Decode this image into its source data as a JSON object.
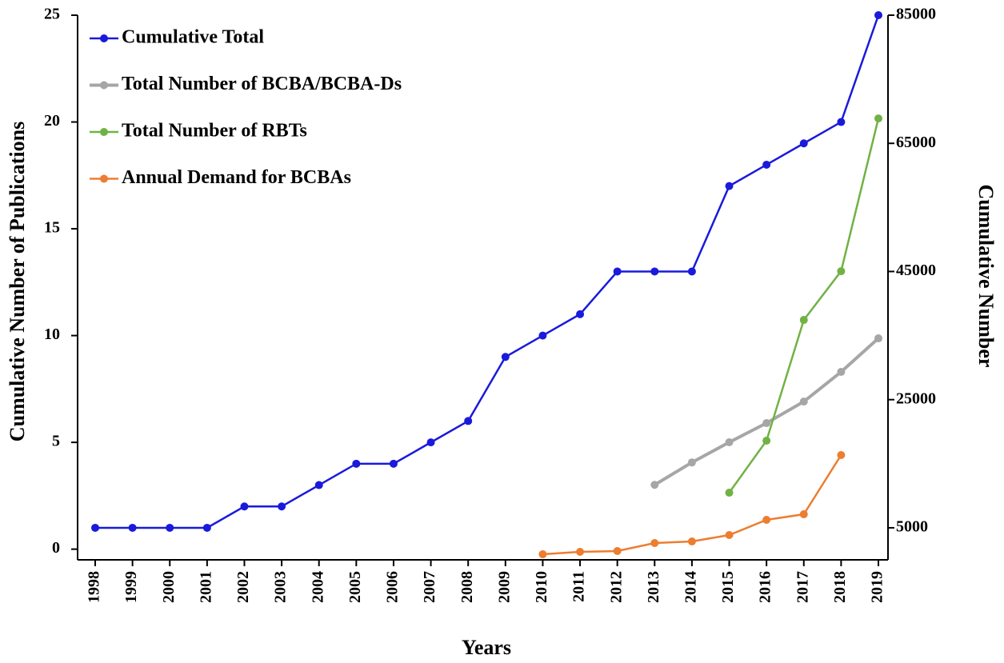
{
  "chart_data": {
    "type": "line",
    "x_label": "Years",
    "y_label": "Cumulative Number of Publications",
    "y2_label": "Cumulative Number",
    "categories": [
      "1998",
      "1999",
      "2000",
      "2001",
      "2002",
      "2003",
      "2004",
      "2005",
      "2006",
      "2007",
      "2008",
      "2009",
      "2010",
      "2011",
      "2012",
      "2013",
      "2014",
      "2015",
      "2016",
      "2017",
      "2018",
      "2019"
    ],
    "ylim": [
      -0.5,
      25
    ],
    "yticks": [
      0,
      5,
      10,
      15,
      20,
      25
    ],
    "y2lim": [
      0,
      85000
    ],
    "y2ticks": [
      5000,
      25000,
      45000,
      65000,
      85000
    ],
    "legend": "upper left",
    "series": [
      {
        "name": "Cumulative Total",
        "color": "#1a1adc",
        "values": [
          1,
          1,
          1,
          1,
          2,
          2,
          3,
          4,
          4,
          5,
          6,
          9,
          10,
          11,
          13,
          13,
          13,
          17,
          18,
          19,
          20,
          25
        ]
      },
      {
        "name": "Total Number of BCBA/BCBA-Ds",
        "color": "#a6a6a6",
        "axis": "y2",
        "values": [
          null,
          null,
          null,
          null,
          null,
          null,
          null,
          null,
          null,
          null,
          null,
          null,
          null,
          null,
          null,
          11700,
          15200,
          18350,
          21340,
          24700,
          29330,
          34570
        ]
      },
      {
        "name": "Total Number of RBTs",
        "color": "#70b244",
        "axis": "y2",
        "values": [
          null,
          null,
          null,
          null,
          null,
          null,
          null,
          null,
          null,
          null,
          null,
          null,
          null,
          null,
          null,
          null,
          null,
          10480,
          18600,
          37440,
          45050,
          68890
        ]
      },
      {
        "name": "Annual Demand for BCBAs",
        "color": "#ed7d31",
        "axis": "y2",
        "values": [
          null,
          null,
          null,
          null,
          null,
          null,
          null,
          null,
          null,
          null,
          null,
          null,
          870,
          1250,
          1370,
          2620,
          2870,
          3870,
          6240,
          7110,
          16350,
          null
        ]
      }
    ]
  }
}
